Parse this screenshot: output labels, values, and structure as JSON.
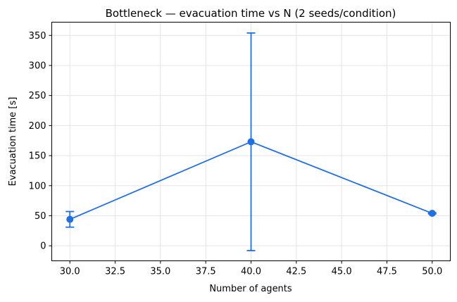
{
  "chart_data": {
    "type": "line",
    "title": "Bottleneck — evacuation time vs N  (2 seeds/condition)",
    "xlabel": "Number of agents",
    "ylabel": "Evacuation time [s]",
    "xlim": [
      29.0,
      51.0
    ],
    "ylim": [
      -25,
      372
    ],
    "xticks": [
      30.0,
      32.5,
      35.0,
      37.5,
      40.0,
      42.5,
      45.0,
      47.5,
      50.0
    ],
    "xtick_labels": [
      "30.0",
      "32.5",
      "35.0",
      "37.5",
      "40.0",
      "42.5",
      "45.0",
      "47.5",
      "50.0"
    ],
    "yticks": [
      0,
      50,
      100,
      150,
      200,
      250,
      300,
      350
    ],
    "ytick_labels": [
      "0",
      "50",
      "100",
      "150",
      "200",
      "250",
      "300",
      "350"
    ],
    "grid": true,
    "color": "#1f6fe5",
    "series": [
      {
        "x": [
          30,
          40,
          50
        ],
        "y": [
          44,
          173,
          54
        ],
        "yerr": [
          13,
          181,
          1
        ]
      }
    ]
  }
}
